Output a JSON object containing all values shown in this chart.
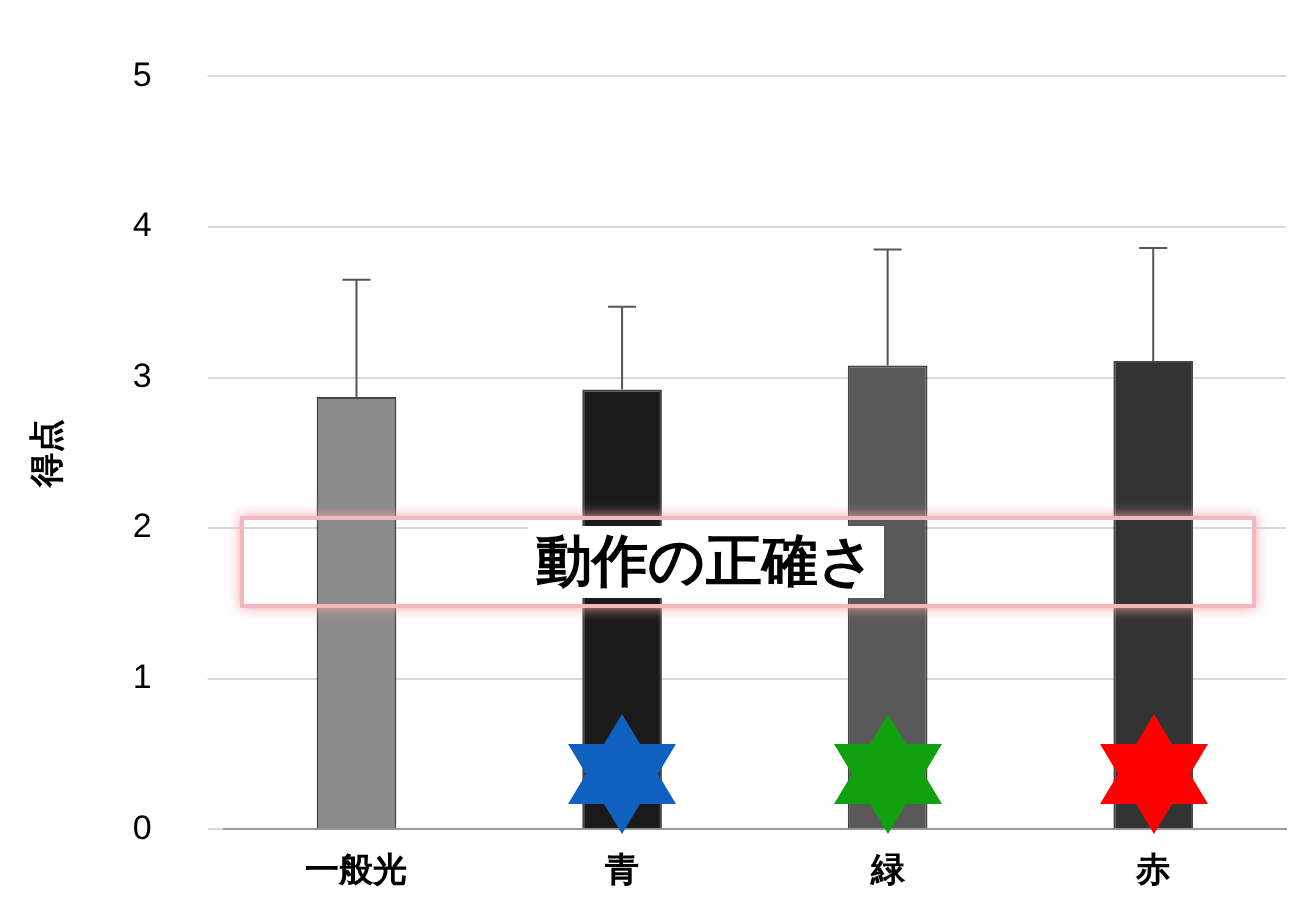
{
  "chart_data": {
    "type": "bar",
    "title": "動作の正確さ",
    "ylabel": "得点",
    "categories": [
      "一般光",
      "青",
      "緑",
      "赤"
    ],
    "values": [
      2.87,
      2.92,
      3.08,
      3.11
    ],
    "colors": [
      "#8c8c8c",
      "#1a1a1a",
      "#595959",
      "#333333"
    ],
    "errors": [
      [
        2.87,
        3.65
      ],
      [
        2.92,
        3.47
      ],
      [
        3.08,
        3.85
      ],
      [
        3.11,
        3.86
      ]
    ],
    "ylim": [
      0,
      5
    ],
    "yticks": [
      0,
      1,
      2,
      3,
      4,
      5
    ],
    "grid": "y",
    "legend": false
  }
}
